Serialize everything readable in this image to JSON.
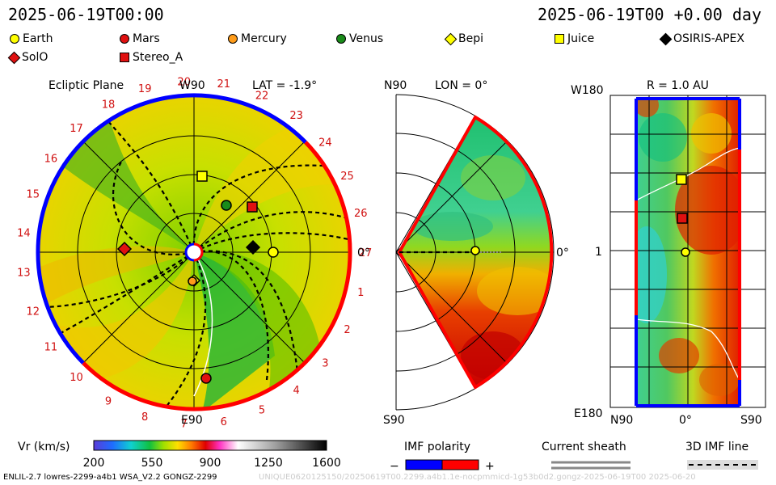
{
  "header": {
    "datetime_left": "2025-06-19T00:00",
    "datetime_right": "2025-06-19T00 +0.00 day"
  },
  "legend": [
    {
      "name": "Earth",
      "shape": "circle",
      "color": "#ffff00"
    },
    {
      "name": "Mars",
      "shape": "circle",
      "color": "#e01010"
    },
    {
      "name": "Mercury",
      "shape": "circle",
      "color": "#ff9c1a"
    },
    {
      "name": "Venus",
      "shape": "circle",
      "color": "#1a8c1a"
    },
    {
      "name": "Bepi",
      "shape": "diamond",
      "color": "#ffff00"
    },
    {
      "name": "Juice",
      "shape": "square",
      "color": "#ffff00"
    },
    {
      "name": "OSIRIS-APEX",
      "shape": "diamond",
      "color": "#000000"
    },
    {
      "name": "SolO",
      "shape": "diamond",
      "color": "#e01010"
    },
    {
      "name": "Stereo_A",
      "shape": "square",
      "color": "#e01010"
    }
  ],
  "ecliptic": {
    "title": "Ecliptic Plane",
    "top_label": "W90",
    "lat_label": "LAT = -1.9°",
    "right_label": "0°",
    "bottom_label": "E90",
    "carrington": [
      "1",
      "2",
      "3",
      "4",
      "5",
      "6",
      "7",
      "8",
      "9",
      "10",
      "11",
      "12",
      "13",
      "14",
      "15",
      "16",
      "17",
      "18",
      "19",
      "20",
      "21",
      "22",
      "23",
      "24",
      "25",
      "26",
      "27"
    ]
  },
  "meridional": {
    "lon_label": "LON = 0°",
    "top_label": "N90",
    "bottom_label": "S90",
    "right_label": "0°"
  },
  "radial_map": {
    "title": "R = 1.0 AU",
    "top_left": "W180",
    "bottom_left": "E180",
    "mid_left": "1",
    "bottom_n": "N90",
    "bottom_mid": "0°",
    "bottom_s": "S90"
  },
  "colorbar": {
    "label": "Vr (km/s)",
    "ticks": [
      "200",
      "550",
      "900",
      "1250",
      "1600"
    ]
  },
  "imf_polarity": {
    "label": "IMF polarity",
    "minus": "−",
    "plus": "+",
    "neg_color": "#0000ff",
    "pos_color": "#ff0000"
  },
  "current_sheath": {
    "label": "Current sheath"
  },
  "imf_line": {
    "label": "3D IMF line"
  },
  "footer": {
    "left": "ENLIL-2.7 lowres-2299-a4b1 WSA_V2.2 GONGZ-2299",
    "right": "UNIQUE0620125150/20250619T00.2299.a4b1.1e-nocpmmicd-1g53b0d2.gongz-2025-06-19T00   2025-06-20"
  },
  "colors": {
    "slow": "#f0c800",
    "fast": "#00b400",
    "vfast": "#e01000"
  }
}
